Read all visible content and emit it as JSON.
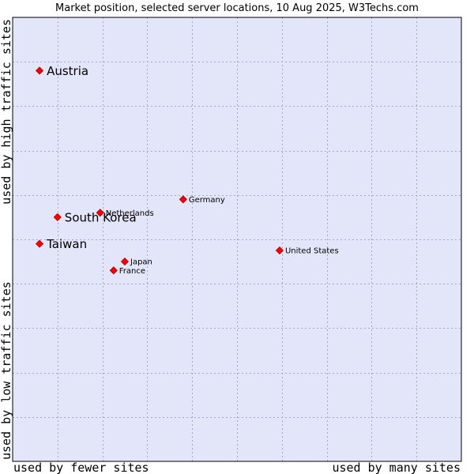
{
  "chart_data": {
    "type": "scatter",
    "title": "Market position, selected server locations, 10 Aug 2025, W3Techs.com",
    "xlabel_left": "used by fewer sites",
    "xlabel_right": "used by many sites",
    "ylabel_bottom": "used by low traffic sites",
    "ylabel_top": "used by high traffic sites",
    "xlim": [
      0,
      10
    ],
    "ylim": [
      0,
      10
    ],
    "grid": true,
    "colors": {
      "plot_background": "#e3e5f8",
      "grid": "#a6a6c6",
      "marker": "#ff0000",
      "marker_edge": "#aa0000"
    },
    "points": [
      {
        "name": "Austria",
        "x": 0.6,
        "y": 8.8,
        "emphasis": true
      },
      {
        "name": "South Korea",
        "x": 1.0,
        "y": 5.5,
        "emphasis": true
      },
      {
        "name": "Taiwan",
        "x": 0.6,
        "y": 4.9,
        "emphasis": true
      },
      {
        "name": "Netherlands",
        "x": 1.95,
        "y": 5.6,
        "emphasis": false
      },
      {
        "name": "Germany",
        "x": 3.8,
        "y": 5.9,
        "emphasis": false
      },
      {
        "name": "Japan",
        "x": 2.5,
        "y": 4.5,
        "emphasis": false
      },
      {
        "name": "France",
        "x": 2.25,
        "y": 4.3,
        "emphasis": false
      },
      {
        "name": "United States",
        "x": 5.95,
        "y": 4.75,
        "emphasis": false
      }
    ]
  }
}
